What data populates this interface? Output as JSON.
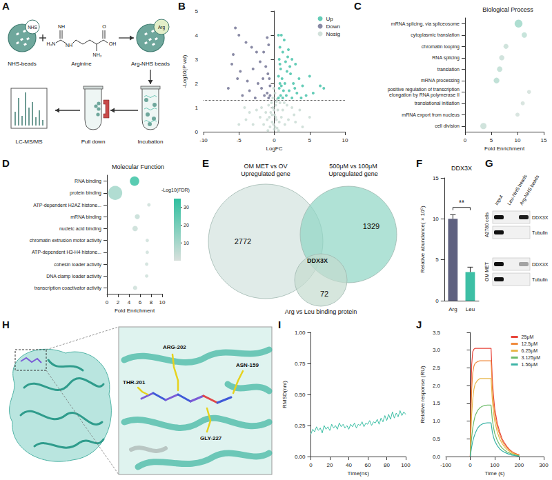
{
  "chart_data": [
    {
      "panel": "B",
      "type": "scatter",
      "x_label": "LogFC",
      "y_label": "-Log10(P val)",
      "xlim": [
        -10,
        10
      ],
      "xticks": [
        -10,
        -5,
        0,
        5,
        10
      ],
      "ylim": [
        0,
        5
      ],
      "yticks": [
        0,
        1,
        2,
        3,
        4,
        5
      ],
      "threshold": 1.3,
      "grid": false,
      "legend": "top-right",
      "series": [
        {
          "name": "Up",
          "color": "#3dbfa5",
          "values": [
            [
              0.6,
              4.0
            ],
            [
              1.0,
              4.0
            ],
            [
              1.4,
              3.8
            ],
            [
              0.8,
              3.5
            ],
            [
              1.2,
              3.3
            ],
            [
              2.0,
              3.4
            ],
            [
              2.5,
              3.0
            ],
            [
              0.7,
              3.0
            ],
            [
              1.6,
              2.9
            ],
            [
              3.0,
              2.8
            ],
            [
              0.9,
              2.6
            ],
            [
              1.8,
              2.5
            ],
            [
              2.3,
              2.4
            ],
            [
              0.6,
              2.3
            ],
            [
              1.1,
              2.2
            ],
            [
              3.5,
              2.2
            ],
            [
              5.0,
              2.3
            ],
            [
              0.8,
              2.0
            ],
            [
              1.5,
              2.0
            ],
            [
              2.7,
              2.0
            ],
            [
              4.0,
              1.9
            ],
            [
              0.7,
              1.8
            ],
            [
              1.3,
              1.7
            ],
            [
              2.1,
              1.7
            ],
            [
              3.2,
              1.6
            ],
            [
              6.5,
              1.9
            ],
            [
              0.9,
              1.5
            ],
            [
              1.7,
              1.5
            ],
            [
              2.5,
              1.4
            ],
            [
              0.6,
              1.4
            ],
            [
              4.5,
              1.5
            ],
            [
              1.2,
              1.4
            ],
            [
              7.0,
              1.8
            ],
            [
              3.8,
              1.4
            ],
            [
              2.9,
              1.8
            ],
            [
              0.8,
              2.8
            ],
            [
              1.9,
              3.1
            ],
            [
              1.0,
              1.9
            ],
            [
              2.2,
              2.7
            ],
            [
              5.5,
              1.6
            ]
          ]
        },
        {
          "name": "Down",
          "color": "#6b6d8e",
          "values": [
            [
              -5.5,
              4.3
            ],
            [
              -5.0,
              4.0
            ],
            [
              -4.0,
              3.7
            ],
            [
              -3.2,
              3.5
            ],
            [
              -2.5,
              3.3
            ],
            [
              -1.0,
              3.9
            ],
            [
              -0.8,
              3.6
            ],
            [
              -1.5,
              3.3
            ],
            [
              -6.0,
              2.8
            ],
            [
              -5.2,
              2.2
            ],
            [
              -4.8,
              2.5
            ],
            [
              -3.0,
              2.6
            ],
            [
              -2.0,
              2.9
            ],
            [
              -1.2,
              2.7
            ],
            [
              -0.9,
              2.4
            ],
            [
              -0.7,
              2.2
            ],
            [
              -2.3,
              2.0
            ],
            [
              -1.8,
              1.8
            ],
            [
              -0.6,
              1.9
            ],
            [
              -1.0,
              1.6
            ],
            [
              -3.5,
              1.7
            ],
            [
              -4.5,
              1.5
            ],
            [
              -0.8,
              1.4
            ],
            [
              -1.4,
              1.5
            ],
            [
              -6.5,
              1.8
            ],
            [
              -2.7,
              1.4
            ],
            [
              -0.6,
              1.5
            ],
            [
              -5.8,
              3.2
            ],
            [
              -1.6,
              2.2
            ],
            [
              -3.8,
              2.1
            ]
          ]
        },
        {
          "name": "Nosig",
          "color": "#c7d9d2",
          "values": [
            [
              0,
              0.1
            ],
            [
              0.3,
              0.5
            ],
            [
              -0.3,
              0.4
            ],
            [
              0.5,
              0.9
            ],
            [
              -0.5,
              0.8
            ],
            [
              1,
              0.6
            ],
            [
              -1,
              0.5
            ],
            [
              0.2,
              1.1
            ],
            [
              -0.2,
              1.0
            ],
            [
              1.5,
              0.3
            ],
            [
              -1.5,
              0.3
            ],
            [
              2,
              0.5
            ],
            [
              -2,
              0.6
            ],
            [
              0.8,
              1.2
            ],
            [
              -0.8,
              1.1
            ],
            [
              3,
              0.4
            ],
            [
              -3,
              0.3
            ],
            [
              0.1,
              0.2
            ],
            [
              -0.1,
              0.3
            ],
            [
              0.4,
              0.15
            ],
            [
              -0.6,
              0.2
            ],
            [
              1.2,
              0.9
            ],
            [
              -1.2,
              0.8
            ],
            [
              2.5,
              1.0
            ],
            [
              -2.5,
              0.9
            ],
            [
              4,
              0.2
            ],
            [
              -4,
              0.5
            ],
            [
              0.7,
              0.4
            ],
            [
              -0.7,
              0.6
            ],
            [
              0.3,
              1.25
            ],
            [
              -0.4,
              1.2
            ],
            [
              1.8,
              1.1
            ],
            [
              -1.8,
              1.0
            ],
            [
              5,
              0.6
            ],
            [
              -5,
              0.3
            ],
            [
              0.05,
              0.7
            ],
            [
              -0.05,
              0.9
            ],
            [
              0.6,
              0.05
            ],
            [
              -0.9,
              0.05
            ],
            [
              2.8,
              0.7
            ],
            [
              -3.5,
              0.8
            ],
            [
              1.4,
              1.2
            ],
            [
              0.2,
              0.6
            ],
            [
              -0.3,
              0.7
            ],
            [
              -4.2,
              1.0
            ],
            [
              3.6,
              0.9
            ],
            [
              0.4,
              1.35
            ],
            [
              -0.2,
              1.4
            ],
            [
              0.1,
              1.6
            ],
            [
              -0.1,
              1.8
            ]
          ]
        }
      ]
    },
    {
      "panel": "C",
      "type": "scatter",
      "title": "Biological Process",
      "x_label": "Fold Enrichment",
      "categories": [
        "mRNA splicing, via spliceosome",
        "cytoplasmic translation",
        "chromatin looping",
        "RNA splicing",
        "translation",
        "mRNA processing",
        "positive regulation of transcription elongation by RNA polymerase II",
        "translational initiation",
        "mRNA export from nucleus",
        "cell division"
      ],
      "values": [
        10.2,
        11.3,
        7.8,
        7.0,
        6.6,
        6.0,
        12.2,
        11.0,
        10.0,
        3.5
      ],
      "sizes": [
        40,
        15,
        12,
        14,
        15,
        18,
        6,
        7,
        7,
        22
      ],
      "colors": [
        "#9ad6c6",
        "#b9ddd2",
        "#c4dcd3",
        "#c6dcd4",
        "#bcdcd1",
        "#b2dacd",
        "#cfdfd8",
        "#cfdfd8",
        "#cfdfd8",
        "#c4dcd3"
      ],
      "xlim": [
        0,
        15
      ],
      "xticks": [
        0,
        5,
        10,
        15
      ],
      "grid": false
    },
    {
      "panel": "D",
      "type": "scatter",
      "title": "Molecular Function",
      "x_label": "Fold Enrichment",
      "categories": [
        "RNA binding",
        "protein binding",
        "ATP-dependent H2AZ histone...",
        "mRNA binding",
        "nucleic acid binding",
        "chromatin extrusion motor activity",
        "ATP-dependent H3-H4 histone...",
        "cohesin loader activity",
        "DNA clamp loader activity",
        "transcription coactivator activity"
      ],
      "values": [
        5.0,
        1.5,
        7.6,
        5.5,
        5.1,
        7.3,
        7.3,
        7.2,
        7.2,
        5.1
      ],
      "sizes": [
        60,
        150,
        4,
        12,
        15,
        4,
        4,
        4,
        4,
        8
      ],
      "fdr": [
        35,
        12,
        3,
        5,
        4,
        2.5,
        2.5,
        2.5,
        2.5,
        3
      ],
      "colorbar": {
        "label": "-Log10(FDR)",
        "range": [
          0,
          35
        ],
        "ticks": [
          10,
          20,
          30
        ],
        "colors": [
          "#d8e0dc",
          "#2fbf9f"
        ]
      },
      "xlim": [
        0,
        10
      ],
      "xticks": [
        0,
        2,
        4,
        6,
        8,
        10
      ],
      "grid": false
    },
    {
      "panel": "F",
      "type": "bar",
      "title": "DDX3X",
      "y_label": "Relative abundance( × 10⁵)",
      "categories": [
        "Arg",
        "Leu"
      ],
      "values": [
        10,
        3.5
      ],
      "errors": [
        0.5,
        0.6
      ],
      "colors": [
        "#5f6180",
        "#3dbfa5"
      ],
      "significance": "**",
      "ylim": [
        0,
        15
      ],
      "yticks": [
        0,
        5,
        10,
        15
      ],
      "grid": false
    },
    {
      "panel": "I",
      "type": "line",
      "x_label": "Time(ns)",
      "y_label": "RMSD(nm)",
      "color": "#3dbfa5",
      "x": [
        0,
        2,
        4,
        6,
        8,
        10,
        12,
        14,
        16,
        18,
        20,
        22,
        24,
        26,
        28,
        30,
        32,
        34,
        36,
        38,
        40,
        42,
        44,
        46,
        48,
        50,
        52,
        54,
        56,
        58,
        60,
        62,
        64,
        66,
        68,
        70,
        72,
        74,
        76,
        78,
        80,
        82,
        84,
        86,
        88,
        90,
        92,
        94,
        96,
        98,
        100
      ],
      "values": [
        0.18,
        0.22,
        0.2,
        0.24,
        0.21,
        0.23,
        0.19,
        0.25,
        0.22,
        0.24,
        0.21,
        0.26,
        0.23,
        0.25,
        0.22,
        0.27,
        0.24,
        0.26,
        0.23,
        0.25,
        0.22,
        0.26,
        0.24,
        0.27,
        0.23,
        0.26,
        0.25,
        0.28,
        0.24,
        0.27,
        0.26,
        0.29,
        0.25,
        0.28,
        0.27,
        0.3,
        0.26,
        0.31,
        0.28,
        0.33,
        0.29,
        0.34,
        0.3,
        0.36,
        0.31,
        0.35,
        0.32,
        0.37,
        0.33,
        0.36,
        0.34
      ],
      "xlim": [
        0,
        100
      ],
      "xticks": [
        0,
        20,
        40,
        60,
        80,
        100
      ],
      "ylim": [
        0,
        1
      ],
      "yticks": [
        {
          "value": 0,
          "label": "0.00"
        },
        0.25,
        {
          "value": 0.5,
          "label": "0.50"
        },
        0.75,
        {
          "value": 1,
          "label": "1.00"
        }
      ],
      "grid": false
    },
    {
      "panel": "J",
      "type": "line",
      "x_label": "Time (s)",
      "y_label": "Relative response (RU)",
      "legend": "top-right",
      "x": [
        0,
        3,
        6,
        10,
        15,
        20,
        30,
        40,
        50,
        60,
        70,
        80,
        85,
        90,
        95,
        100,
        110,
        120,
        130,
        140,
        150,
        160,
        170,
        180,
        190,
        200
      ],
      "series": [
        {
          "name": "25μM",
          "color": "#e8443a",
          "values": [
            0,
            1.8,
            2.6,
            2.95,
            3.03,
            3.05,
            3.05,
            3.05,
            3.05,
            3.05,
            3.05,
            3.05,
            3.05,
            2.2,
            1.7,
            1.35,
            0.95,
            0.7,
            0.5,
            0.38,
            0.28,
            0.2,
            0.14,
            0.1,
            0.07,
            0.05
          ]
        },
        {
          "name": "12.5μM",
          "color": "#f08a3c",
          "values": [
            0,
            1.2,
            1.9,
            2.35,
            2.55,
            2.63,
            2.68,
            2.7,
            2.7,
            2.7,
            2.7,
            2.7,
            2.7,
            1.95,
            1.5,
            1.2,
            0.85,
            0.62,
            0.45,
            0.33,
            0.25,
            0.18,
            0.13,
            0.09,
            0.06,
            0.04
          ]
        },
        {
          "name": "6.25μM",
          "color": "#e8b64a",
          "values": [
            0,
            0.7,
            1.2,
            1.6,
            1.9,
            2.05,
            2.15,
            2.2,
            2.2,
            2.2,
            2.2,
            2.2,
            2.2,
            1.6,
            1.25,
            1.0,
            0.7,
            0.5,
            0.37,
            0.27,
            0.2,
            0.15,
            0.1,
            0.07,
            0.05,
            0.03
          ]
        },
        {
          "name": "3.125μM",
          "color": "#6dbb6a",
          "values": [
            0,
            0.3,
            0.55,
            0.8,
            1.0,
            1.15,
            1.3,
            1.38,
            1.42,
            1.44,
            1.45,
            1.45,
            1.45,
            1.05,
            0.82,
            0.65,
            0.46,
            0.33,
            0.24,
            0.18,
            0.13,
            0.1,
            0.07,
            0.05,
            0.03,
            0.02
          ]
        },
        {
          "name": "1.56μM",
          "color": "#3bb3a6",
          "values": [
            0,
            0.15,
            0.28,
            0.42,
            0.55,
            0.65,
            0.8,
            0.88,
            0.92,
            0.94,
            0.95,
            0.95,
            0.95,
            0.7,
            0.55,
            0.44,
            0.31,
            0.22,
            0.16,
            0.12,
            0.09,
            0.06,
            0.04,
            0.03,
            0.02,
            0.01
          ]
        }
      ],
      "xlim": [
        -100,
        300
      ],
      "xticks": [
        -100,
        0,
        100,
        200,
        300
      ],
      "ylim": [
        0,
        3.5
      ],
      "yticks": [
        {
          "value": 0,
          "label": "0.0"
        },
        0.5,
        {
          "value": 1,
          "label": "1.0"
        },
        1.5,
        {
          "value": 2,
          "label": "2.0"
        },
        2.5,
        {
          "value": 3,
          "label": "3.0"
        },
        3.5
      ],
      "grid": false
    }
  ],
  "diagrams": {
    "A": {
      "panel": "A",
      "steps": {
        "nhs_beads": "NHS-beads",
        "nhs_tag": "NHS",
        "arginine": "Arginine",
        "arg_beads": "Arg-NHS beads",
        "arg_tag": "Arg",
        "incubation": "Incubation",
        "pull_down": "Pull down",
        "lcms": "LC-MS/MS"
      },
      "arginine_atoms": [
        "H₂N",
        "NH",
        "NH",
        "NH₂",
        "O",
        "OH"
      ]
    },
    "E": {
      "panel": "E",
      "intersection": "DDX3X",
      "sets": [
        {
          "label": "OM MET vs OV Upregulated gene",
          "count": 2772,
          "color": "#d3e3de"
        },
        {
          "label": "500μM vs 100μM Upregulated gene",
          "count": 1329,
          "color": "#8fd5c4"
        },
        {
          "label": "Arg vs Leu binding protein",
          "count": 72,
          "color": "#c5dccf"
        }
      ]
    },
    "G": {
      "panel": "G",
      "lanes": [
        "Input",
        "Leu-NHS beads",
        "Arg-NHS beads"
      ],
      "groups": [
        {
          "label": "A2780 cells",
          "rows": [
            {
              "label": "DDX3X",
              "bands": [
                1,
                0,
                0.95
              ]
            },
            {
              "label": "Tubulin",
              "bands": [
                1,
                0,
                0
              ]
            }
          ]
        },
        {
          "label": "OM MET",
          "rows": [
            {
              "label": "DDX3X",
              "bands": [
                1,
                0,
                0.35
              ]
            },
            {
              "label": "Tubulin",
              "bands": [
                1,
                0,
                0
              ]
            }
          ]
        }
      ]
    },
    "H": {
      "panel": "H",
      "residues": [
        "ARG-202",
        "THR-201",
        "ASN-159",
        "GLY-227"
      ]
    }
  }
}
